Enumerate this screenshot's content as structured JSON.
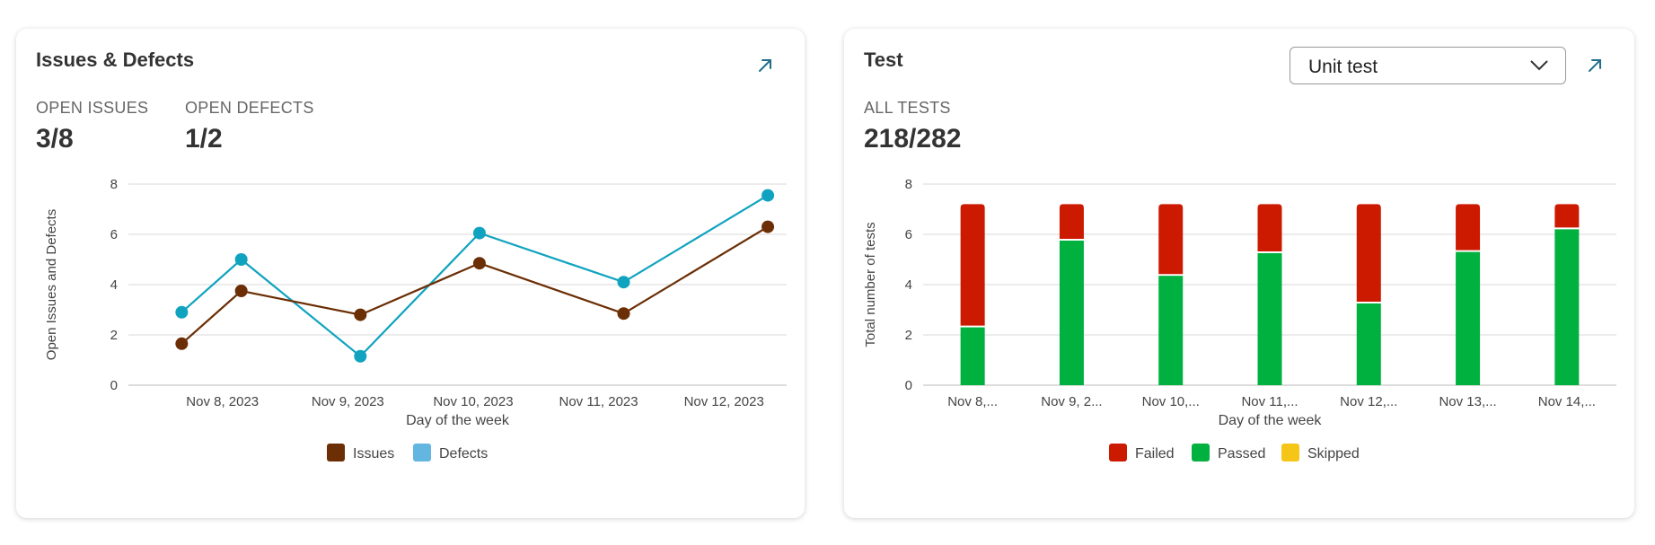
{
  "issues_card": {
    "title": "Issues & Defects",
    "stats": [
      {
        "label": "OPEN ISSUES",
        "value": "3/8"
      },
      {
        "label": "OPEN DEFECTS",
        "value": "1/2"
      }
    ],
    "expand_icon": "arrow-up-right-icon"
  },
  "test_card": {
    "title": "Test",
    "dropdown_value": "Unit test",
    "dropdown_icon": "chevron-down-icon",
    "stats": [
      {
        "label": "ALL TESTS",
        "value": "218/282"
      }
    ],
    "expand_icon": "arrow-up-right-icon"
  },
  "colors": {
    "accent": "#1f6f8b",
    "issues": "#6b2e05",
    "defects": "#10a3bf",
    "defects_legend": "#62b6e0",
    "failed": "#cc1a00",
    "passed": "#00b140",
    "skipped": "#f5c518",
    "grid": "#d9d9d9"
  },
  "chart_data": [
    {
      "type": "line",
      "xlabel": "Day of the week",
      "ylabel": "Open Issues and Defects",
      "ylim": [
        0,
        8
      ],
      "yticks": [
        0,
        2,
        4,
        6,
        8
      ],
      "x": [
        0.0,
        1.0,
        2.0,
        3.0,
        4.0,
        5.0,
        6.0,
        7.0
      ],
      "tick_labels": [
        {
          "x": 1.0,
          "label": "Nov 8, 2023"
        },
        {
          "x": 3.0,
          "label": "Nov 9, 2023"
        },
        {
          "x": 5.0,
          "label": "Nov 10, 2023"
        },
        {
          "x": 7.0,
          "label": "Nov 11, 2023"
        },
        {
          "x": 9.0,
          "label": "Nov 12, 2023"
        }
      ],
      "xlim": [
        -0.5,
        10.0
      ],
      "series": [
        {
          "name": "Issues",
          "x": [
            0.35,
            1.3,
            3.2,
            5.1,
            7.4,
            9.7
          ],
          "values": [
            1.65,
            3.75,
            2.8,
            4.85,
            2.85,
            6.3
          ]
        },
        {
          "name": "Defects",
          "x": [
            0.35,
            1.3,
            3.2,
            5.1,
            7.4,
            9.7
          ],
          "values": [
            2.9,
            5.0,
            1.15,
            6.05,
            4.1,
            7.55
          ]
        }
      ],
      "legend": "bottom"
    },
    {
      "type": "bar",
      "stacked": true,
      "xlabel": "Day of the week",
      "ylabel": "Total number of tests",
      "ylim": [
        0,
        8
      ],
      "yticks": [
        0,
        2,
        4,
        6,
        8
      ],
      "categories": [
        "Nov 8,...",
        "Nov 9, 2...",
        "Nov 10,...",
        "Nov 11,...",
        "Nov 12,...",
        "Nov 13,...",
        "Nov 14,..."
      ],
      "series": [
        {
          "name": "Passed",
          "values": [
            2.3,
            5.75,
            4.35,
            5.25,
            3.25,
            5.3,
            6.2
          ]
        },
        {
          "name": "Failed",
          "values": [
            4.9,
            1.45,
            2.85,
            1.95,
            3.95,
            1.9,
            1.0
          ]
        },
        {
          "name": "Skipped",
          "values": [
            0,
            0,
            0,
            0,
            0,
            0,
            0
          ]
        }
      ],
      "legend_order": [
        "Failed",
        "Passed",
        "Skipped"
      ],
      "legend": "bottom"
    }
  ]
}
